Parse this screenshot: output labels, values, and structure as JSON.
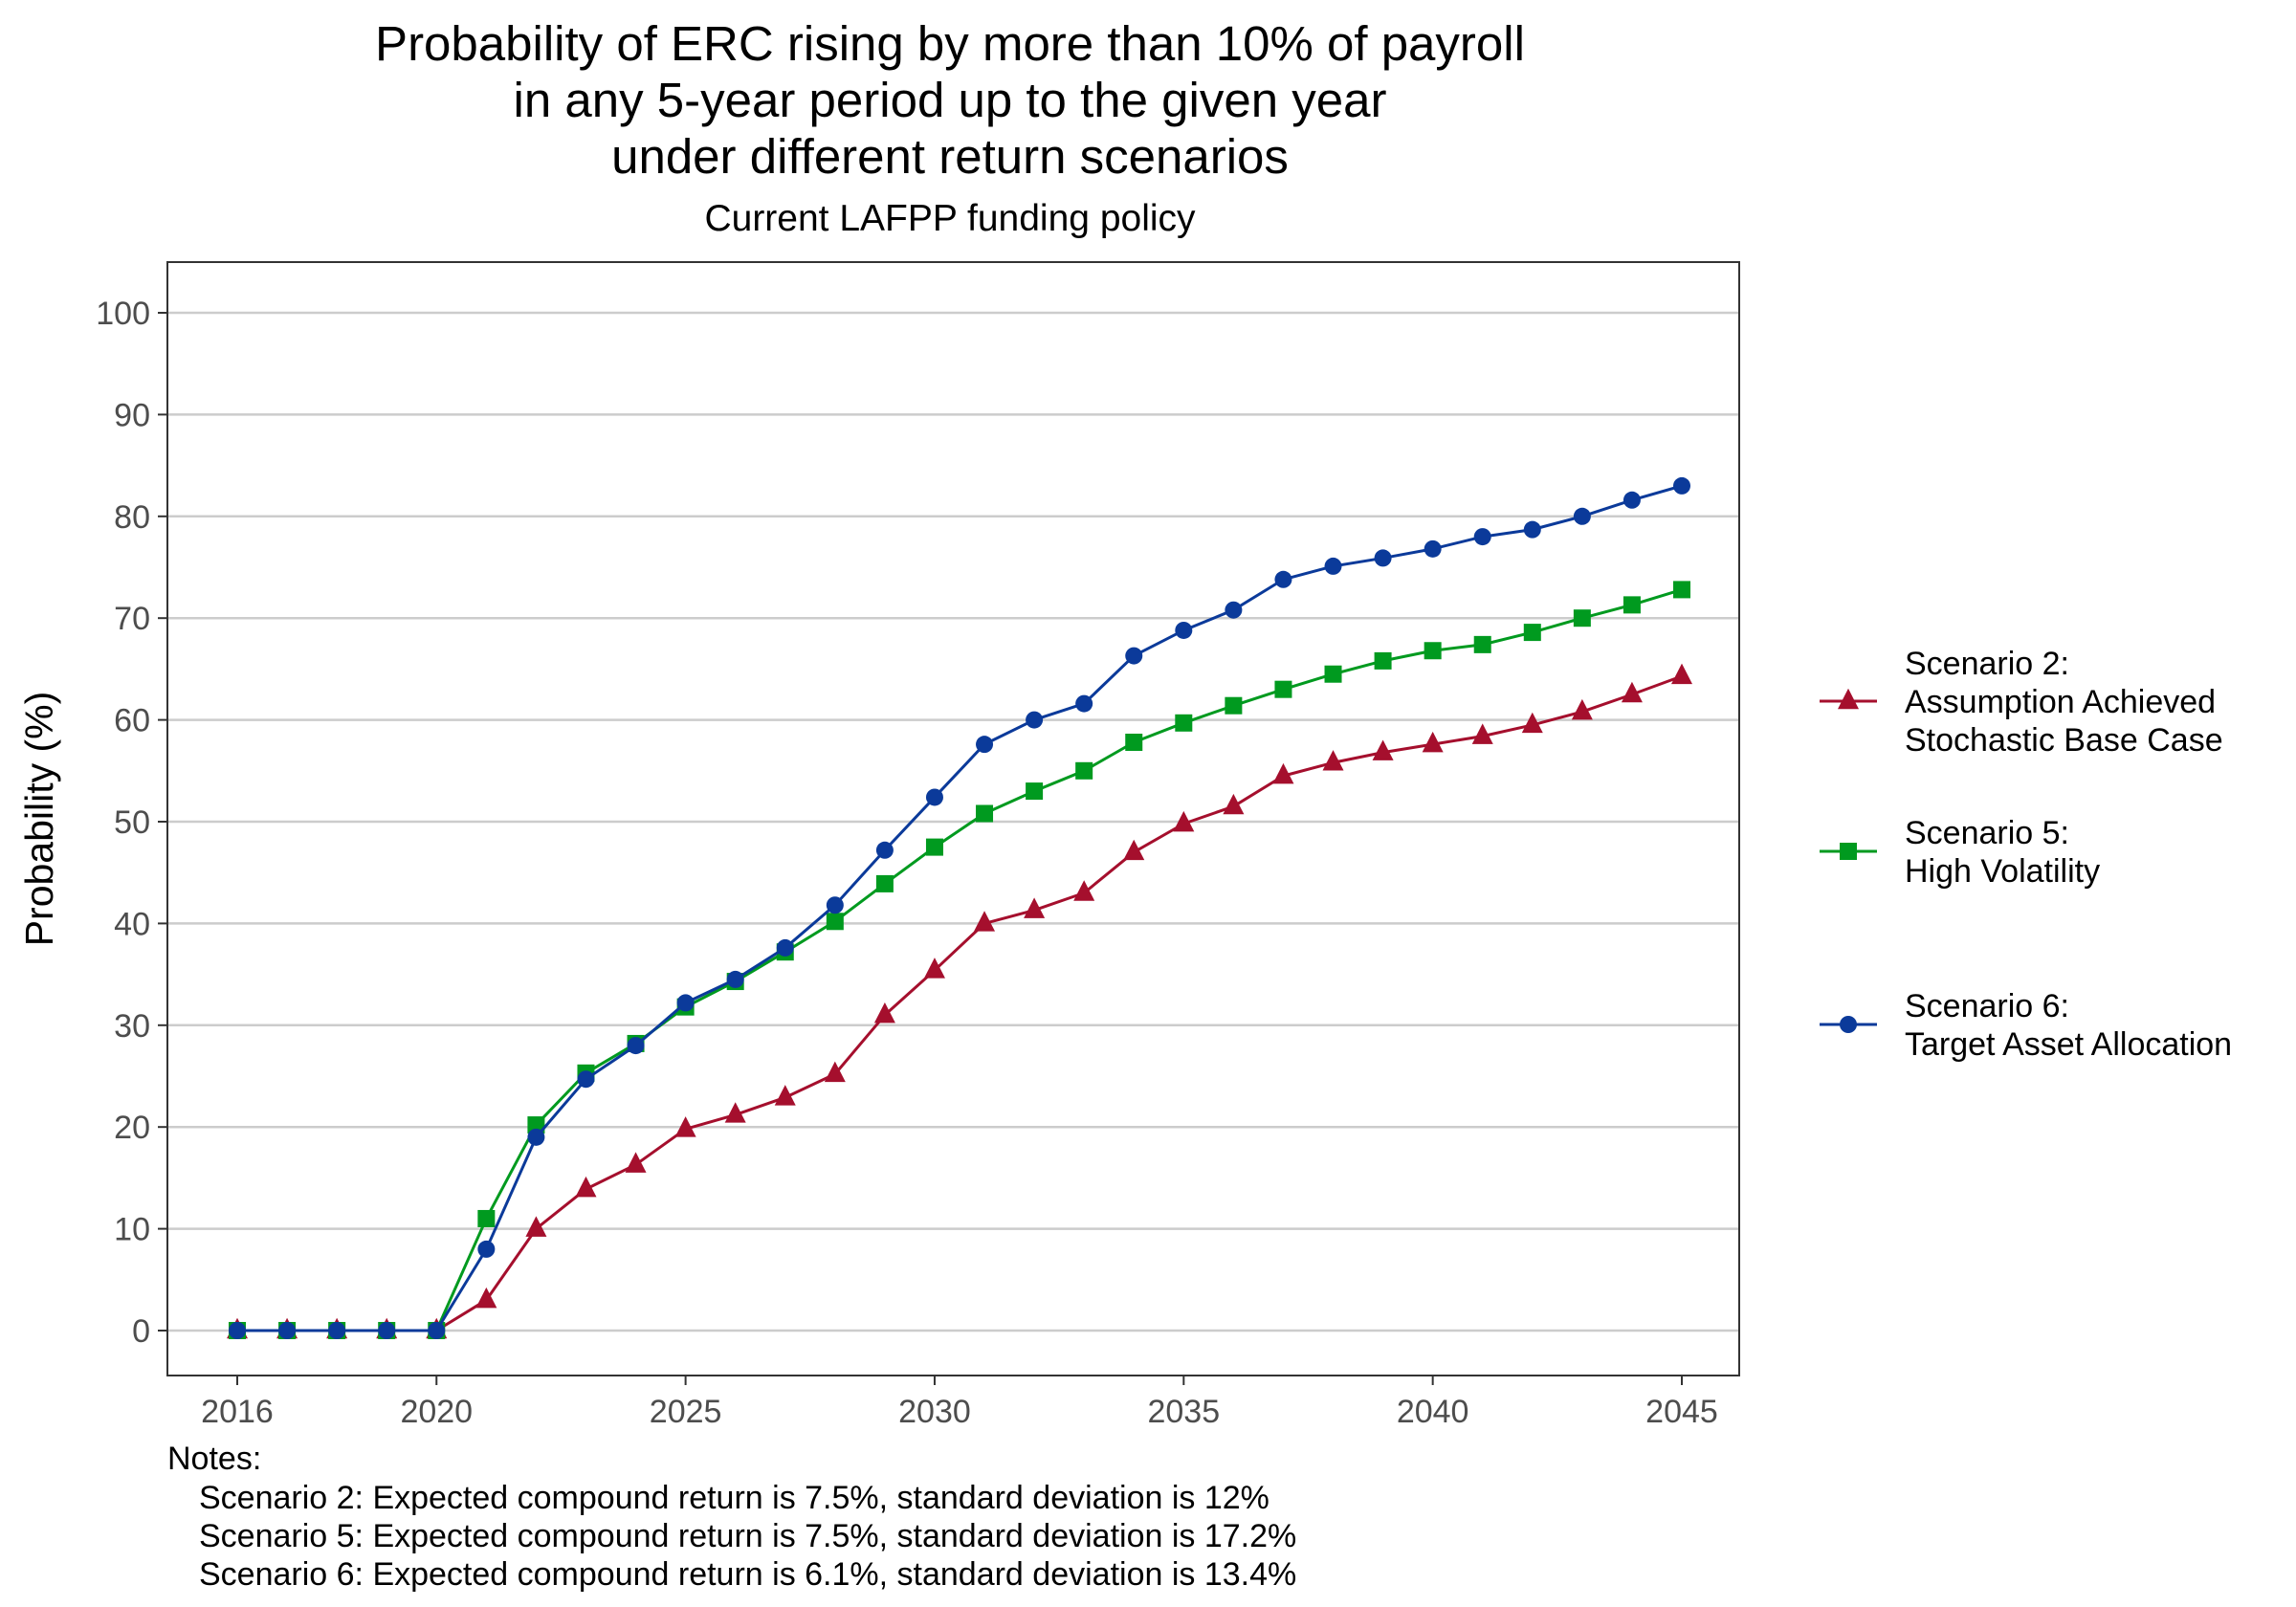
{
  "chart_data": {
    "type": "line",
    "title_lines": [
      "Probability of ERC rising by more than 10% of payroll",
      "in any 5-year period up to the given year",
      "under different return scenarios"
    ],
    "subtitle": "Current LAFPP funding policy",
    "xlabel": "",
    "ylabel": "Probability (%)",
    "xlim": [
      2016,
      2045
    ],
    "ylim": [
      0,
      100
    ],
    "x_ticks": [
      2016,
      2020,
      2025,
      2030,
      2035,
      2040,
      2045
    ],
    "y_ticks": [
      0,
      10,
      20,
      30,
      40,
      50,
      60,
      70,
      80,
      90,
      100
    ],
    "grid": "horizontal",
    "legend_position": "right",
    "x": [
      2016,
      2017,
      2018,
      2019,
      2020,
      2021,
      2022,
      2023,
      2024,
      2025,
      2026,
      2027,
      2028,
      2029,
      2030,
      2031,
      2032,
      2033,
      2034,
      2035,
      2036,
      2037,
      2038,
      2039,
      2040,
      2041,
      2042,
      2043,
      2044,
      2045
    ],
    "series": [
      {
        "name": "Scenario 2: Assumption Achieved Stochastic Base Case",
        "legend_lines": [
          "Scenario 2:",
          "Assumption Achieved",
          "Stochastic Base Case"
        ],
        "color": "#a50f2d",
        "marker": "triangle",
        "values": [
          0,
          0,
          0,
          0,
          0,
          3.0,
          10.0,
          13.9,
          16.3,
          19.8,
          21.2,
          22.9,
          25.2,
          31.0,
          35.4,
          40.0,
          41.3,
          43.0,
          47.0,
          49.8,
          51.5,
          54.5,
          55.8,
          56.8,
          57.6,
          58.4,
          59.5,
          60.8,
          62.5,
          64.3
        ]
      },
      {
        "name": "Scenario 5: High Volatility",
        "legend_lines": [
          "Scenario 5:",
          "High Volatility"
        ],
        "color": "#009a1f",
        "marker": "square",
        "values": [
          0,
          0,
          0,
          0,
          0,
          11.0,
          20.2,
          25.3,
          28.2,
          31.8,
          34.3,
          37.2,
          40.2,
          43.9,
          47.5,
          50.8,
          53.0,
          55.0,
          57.8,
          59.7,
          61.4,
          63.0,
          64.5,
          65.8,
          66.8,
          67.4,
          68.6,
          70.0,
          71.3,
          72.8
        ]
      },
      {
        "name": "Scenario 6: Target Asset Allocation",
        "legend_lines": [
          "Scenario 6:",
          "Target Asset Allocation"
        ],
        "color": "#0b3a9a",
        "marker": "circle",
        "values": [
          0,
          0,
          0,
          0,
          0,
          8.0,
          19.0,
          24.7,
          28.0,
          32.2,
          34.5,
          37.6,
          41.8,
          47.2,
          52.4,
          57.6,
          60.0,
          61.6,
          66.3,
          68.8,
          70.8,
          73.8,
          75.1,
          75.9,
          76.8,
          78.0,
          78.7,
          80.0,
          81.6,
          83.0
        ]
      }
    ],
    "notes": {
      "heading": "Notes:",
      "lines": [
        "Scenario 2: Expected compound return is 7.5%, standard deviation is 12%",
        "Scenario 5: Expected compound return is 7.5%, standard deviation is 17.2%",
        "Scenario 6: Expected compound return is 6.1%, standard deviation is 13.4%"
      ]
    }
  }
}
